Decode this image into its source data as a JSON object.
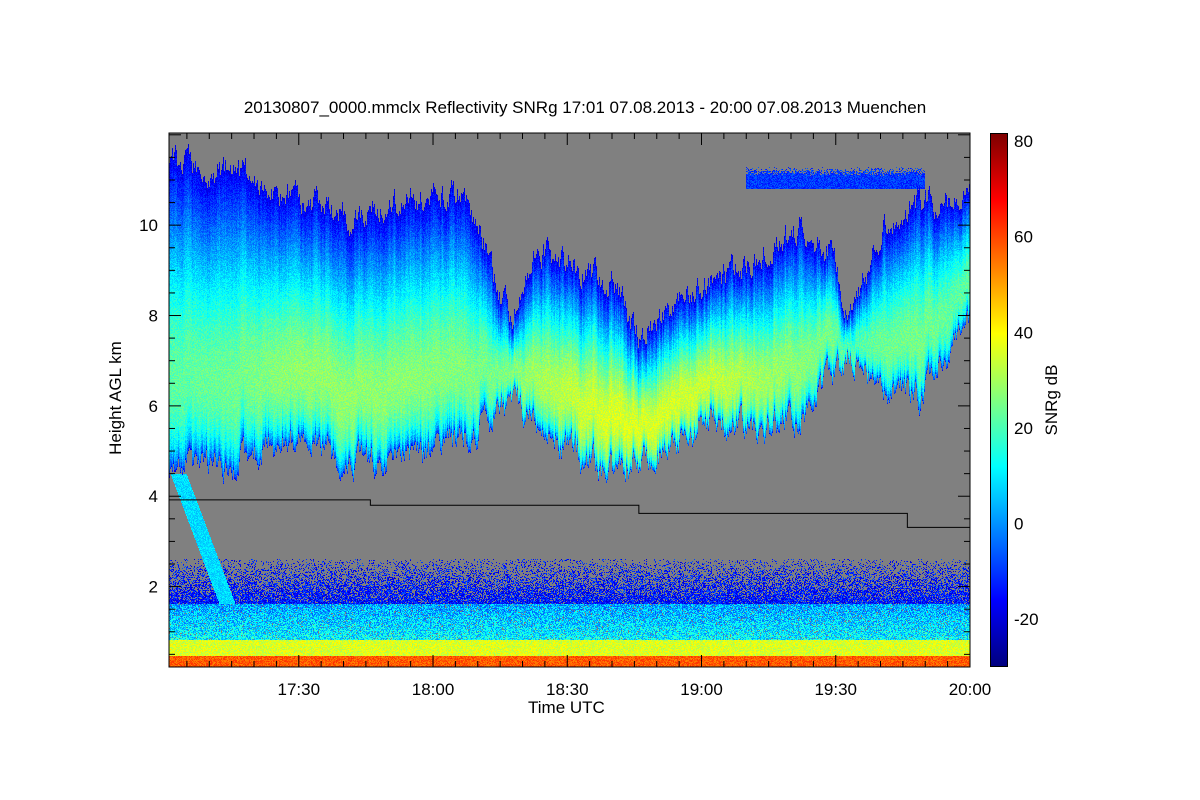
{
  "chart_data": {
    "type": "heatmap",
    "title": "20130807_0000.mmclx Reflectivity SNRg   17:01 07.08.2013 - 20:00 07.08.2013 Muenchen",
    "xlabel": "Time UTC",
    "ylabel": "Height AGL km",
    "colorbar_label": "SNRg dB",
    "x_range_minutes_after_1700": [
      1,
      180
    ],
    "x_ticks": [
      {
        "label": "17:30",
        "min": 30
      },
      {
        "label": "18:00",
        "min": 60
      },
      {
        "label": "18:30",
        "min": 90
      },
      {
        "label": "19:00",
        "min": 120
      },
      {
        "label": "19:30",
        "min": 150
      },
      {
        "label": "20:00",
        "min": 180
      }
    ],
    "y_range_km": [
      0.22,
      12.04
    ],
    "y_ticks": [
      {
        "label": "2",
        "km": 2
      },
      {
        "label": "4",
        "km": 4
      },
      {
        "label": "6",
        "km": 6
      },
      {
        "label": "8",
        "km": 8
      },
      {
        "label": "10",
        "km": 10
      }
    ],
    "colorbar_range_db": [
      -30,
      81.7
    ],
    "colorbar_ticks": [
      {
        "label": "-20",
        "v": -20
      },
      {
        "label": "0",
        "v": 0
      },
      {
        "label": "20",
        "v": 20
      },
      {
        "label": "40",
        "v": 40
      },
      {
        "label": "60",
        "v": 60
      },
      {
        "label": "80",
        "v": 80
      }
    ],
    "colormap": "jet",
    "no_data_color": "#808080",
    "cloud_layer": {
      "time_min": [
        1,
        14.6,
        30,
        41,
        57,
        68,
        72,
        77,
        84,
        93,
        100,
        106,
        115,
        124,
        133,
        142,
        149,
        153,
        160,
        169,
        178,
        180
      ],
      "top_km": [
        11.3,
        11.2,
        10.6,
        10.2,
        10.6,
        10.6,
        9.5,
        7.9,
        9.5,
        9.0,
        8.8,
        7.5,
        8.4,
        8.8,
        9.3,
        9.9,
        9.5,
        7.7,
        9.9,
        10.6,
        10.6,
        10.5
      ],
      "base_km": [
        4.5,
        4.7,
        5.3,
        4.8,
        4.8,
        5.3,
        5.7,
        5.9,
        5.7,
        4.8,
        4.6,
        4.8,
        5.3,
        5.7,
        5.5,
        5.7,
        6.6,
        7.0,
        6.4,
        6.2,
        7.7,
        7.8
      ],
      "peak_snr_db": [
        22,
        24,
        28,
        28,
        27,
        26,
        25,
        26,
        30,
        34,
        36,
        36,
        35,
        33,
        30,
        27,
        25,
        20,
        24,
        25,
        22,
        22
      ]
    },
    "upper_thin_layer": {
      "time_min": [
        130,
        170
      ],
      "base_km": 10.8,
      "top_km": 11.2,
      "snr_db": -10
    },
    "fall_streak": {
      "start": {
        "time_min": 3,
        "km": 4.5
      },
      "end": {
        "time_min": 14,
        "km": 1.6
      },
      "snr_db": 8
    },
    "boundary_layer": {
      "clutter_top_km": 2.6,
      "bands": [
        {
          "from_km": 0.22,
          "to_km": 0.45,
          "snr_db": 58
        },
        {
          "from_km": 0.45,
          "to_km": 0.8,
          "snr_db": 38
        },
        {
          "from_km": 0.8,
          "to_km": 1.6,
          "snr_db": 10
        }
      ]
    },
    "melting_layer_line": {
      "time_min": [
        1,
        46,
        46,
        106,
        106,
        166,
        166,
        180
      ],
      "km": [
        3.92,
        3.92,
        3.8,
        3.8,
        3.62,
        3.62,
        3.31,
        3.31
      ]
    }
  }
}
